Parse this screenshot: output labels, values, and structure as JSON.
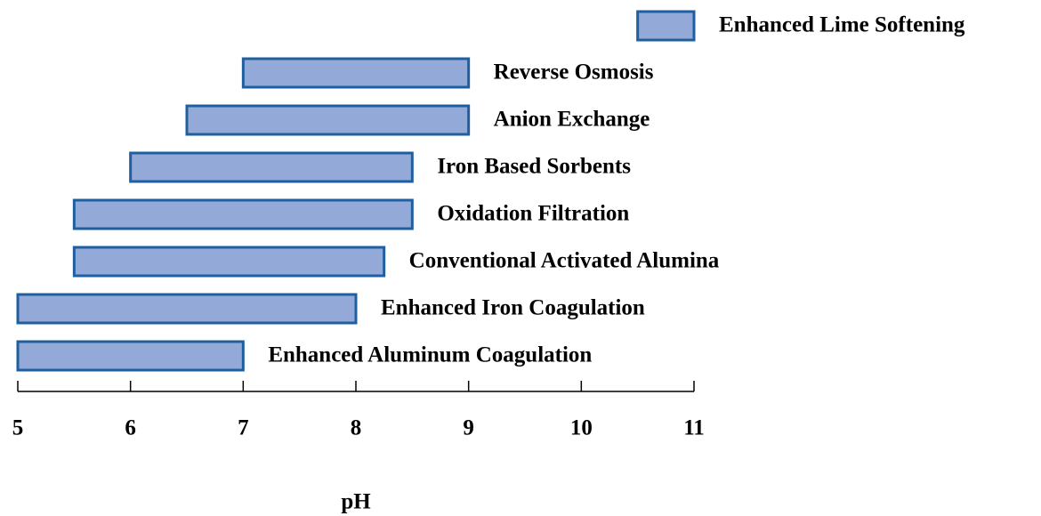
{
  "chart_data": {
    "type": "range_bar",
    "categories": [
      "Enhanced Lime Softening",
      "Reverse Osmosis",
      "Anion Exchange",
      "Iron Based Sorbents",
      "Oxidation Filtration",
      "Conventional Activated Alumina",
      "Enhanced Iron Coagulation",
      "Enhanced Aluminum Coagulation"
    ],
    "start": [
      10.5,
      7,
      6.5,
      6,
      5.5,
      5.5,
      5,
      5
    ],
    "end": [
      11,
      9,
      9,
      8.5,
      8.5,
      8.25,
      8,
      7
    ],
    "color": "#93a9d8",
    "edge_color": "#1f5fa0",
    "xlabel": "pH",
    "xlim": [
      5,
      11
    ],
    "xticks": [
      5,
      6,
      7,
      8,
      9,
      10,
      11
    ]
  }
}
